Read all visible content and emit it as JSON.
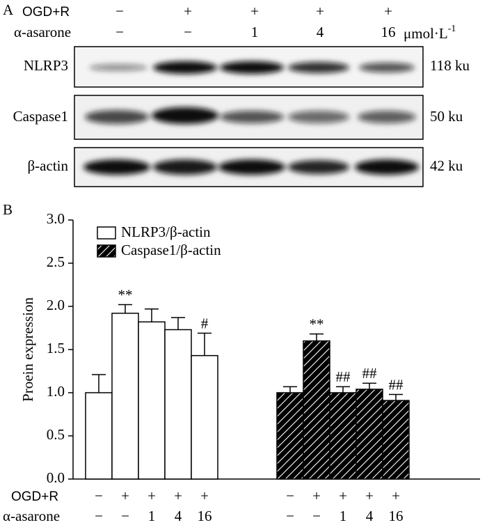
{
  "blot": {
    "label": "A",
    "unit": "μmol·L",
    "unit_exponent": "-1",
    "rows": [
      {
        "name": "NLRP3",
        "size": "118 ku"
      },
      {
        "name": "Caspase1",
        "size": "50 ku"
      },
      {
        "name": "β-actin",
        "size": "42 ku"
      }
    ]
  },
  "chart_data": {
    "type": "bar",
    "panel_label": "B",
    "ylabel": "Proein expression",
    "condition_rows": [
      {
        "label": "OGD+R",
        "values": [
          "−",
          "+",
          "+",
          "+",
          "+"
        ]
      },
      {
        "label": "α-asarone",
        "values": [
          "−",
          "−",
          "1",
          "4",
          "16"
        ]
      }
    ],
    "series": [
      {
        "name": "NLRP3/β-actin",
        "color": "#ffffff",
        "hatch": false,
        "values": [
          1.0,
          1.92,
          1.82,
          1.73,
          1.43
        ],
        "errors": [
          0.21,
          0.1,
          0.15,
          0.14,
          0.26
        ],
        "annotations": [
          null,
          "**",
          null,
          null,
          "#"
        ]
      },
      {
        "name": "Caspase1/β-actin",
        "color": "#000000",
        "hatch": true,
        "values": [
          1.0,
          1.6,
          1.0,
          1.04,
          0.91
        ],
        "errors": [
          0.07,
          0.08,
          0.07,
          0.07,
          0.07
        ],
        "annotations": [
          null,
          "**",
          "##",
          "##",
          "##"
        ]
      }
    ],
    "ylim": [
      0,
      3
    ],
    "yticks": [
      {
        "value": 0,
        "label": "0.0"
      },
      {
        "value": 0.5,
        "label": "0.5"
      },
      {
        "value": 1,
        "label": "1.0"
      },
      {
        "value": 1.5,
        "label": "1.5"
      },
      {
        "value": 2,
        "label": "2.0"
      },
      {
        "value": 2.5,
        "label": "2.5"
      },
      {
        "value": 3,
        "label": "3.0"
      }
    ]
  }
}
